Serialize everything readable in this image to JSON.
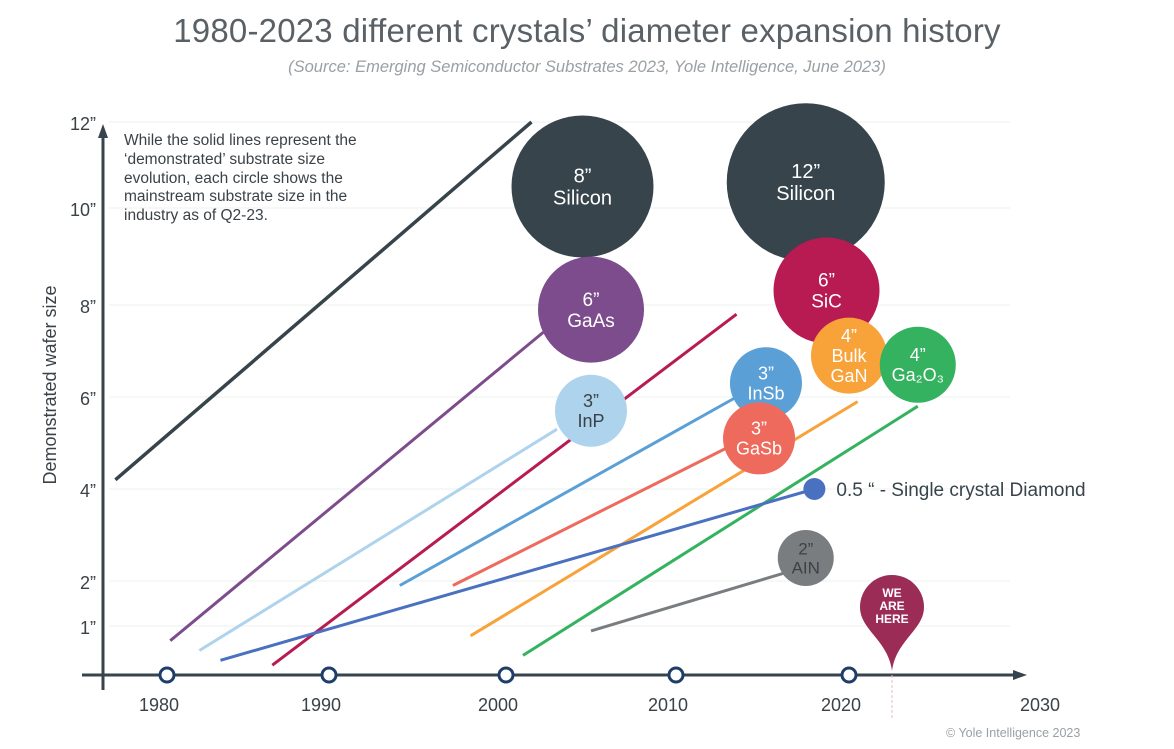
{
  "chart_data": {
    "type": "line",
    "title": "1980-2023 different crystals’ diameter expansion history",
    "subtitle": "(Source: Emerging Semiconductor Substrates 2023, Yole Intelligence, June 2023)",
    "xlabel": "",
    "ylabel": "Demonstrated wafer size",
    "xlim": [
      1977,
      2031
    ],
    "ylim": [
      0,
      12
    ],
    "x_ticks": [
      "1980",
      "1990",
      "2000",
      "2010",
      "2020",
      "2030"
    ],
    "y_ticks": [
      "1”",
      "2”",
      "4”",
      "6”",
      "8”",
      "10”",
      "12”"
    ],
    "grid": true,
    "annotation": "While the solid lines represent the ‘demonstrated’ substrate size evolution, each circle shows the mainstream substrate size in the industry as of Q2-23.",
    "marker": {
      "label_lines": [
        "WE",
        "ARE",
        "HERE"
      ],
      "year": 2022.5,
      "color": "#9b2c55"
    },
    "copyright": "© Yole Intelligence 2023",
    "series": [
      {
        "name": "Silicon",
        "color": "#37444b",
        "line": {
          "x": [
            1977,
            2001.5
          ],
          "y": [
            4.2,
            12
          ]
        },
        "bubbles": [
          {
            "size": "8”",
            "label": "Silicon",
            "x": 2004.5,
            "y": 10.5,
            "value_in": 8
          },
          {
            "size": "12”",
            "label": "Silicon",
            "x": 2017.5,
            "y": 10.6,
            "value_in": 12
          }
        ]
      },
      {
        "name": "GaAs",
        "color": "#7d4c8c",
        "line": {
          "x": [
            1980.2,
            2002.5
          ],
          "y": [
            0.7,
            7.5
          ]
        },
        "bubbles": [
          {
            "size": "6”",
            "label": "GaAs",
            "x": 2005,
            "y": 7.9,
            "value_in": 6
          }
        ]
      },
      {
        "name": "InP",
        "color": "#aed3ec",
        "line": {
          "x": [
            1982,
            2003
          ],
          "y": [
            0.5,
            5.3
          ]
        },
        "bubbles": [
          {
            "size": "3”",
            "label": "InP",
            "x": 2005,
            "y": 5.7,
            "value_in": 3
          }
        ]
      },
      {
        "name": "SiC",
        "color": "#b81a52",
        "line": {
          "x": [
            1986.5,
            2013.5
          ],
          "y": [
            0.2,
            7.8
          ]
        },
        "bubbles": [
          {
            "size": "6”",
            "label": "SiC",
            "x": 2018.7,
            "y": 8.3,
            "value_in": 6
          }
        ]
      },
      {
        "name": "InSb",
        "color": "#5a9fd6",
        "line": {
          "x": [
            1994,
            2013.5
          ],
          "y": [
            1.9,
            6.0
          ]
        },
        "bubbles": [
          {
            "size": "3”",
            "label": "InSb",
            "x": 2015.2,
            "y": 6.3,
            "value_in": 3
          }
        ]
      },
      {
        "name": "GaSb",
        "color": "#ee6a5c",
        "line": {
          "x": [
            1997,
            2013.5
          ],
          "y": [
            1.9,
            5.0
          ]
        },
        "bubbles": [
          {
            "size": "3”",
            "label": "GaSb",
            "x": 2014.8,
            "y": 5.1,
            "value_in": 3
          }
        ]
      },
      {
        "name": "Bulk GaN",
        "color": "#f8a23a",
        "line": {
          "x": [
            1998,
            2020.5
          ],
          "y": [
            0.8,
            5.9
          ]
        },
        "bubbles": [
          {
            "size": "4”",
            "label_lines": [
              "Bulk",
              "GaN"
            ],
            "label": "Bulk GaN",
            "x": 2020,
            "y": 6.9,
            "value_in": 4
          }
        ]
      },
      {
        "name": "Ga2O3",
        "color": "#34b260",
        "line": {
          "x": [
            2001,
            2024
          ],
          "y": [
            0.4,
            5.8
          ]
        },
        "bubbles": [
          {
            "size": "4”",
            "label": "Ga₂O₃",
            "x": 2024,
            "y": 6.7,
            "value_in": 4
          }
        ]
      },
      {
        "name": "Single crystal Diamond",
        "color": "#4a70c0",
        "line": {
          "x": [
            1983.3,
            2018
          ],
          "y": [
            0.3,
            4.0
          ]
        },
        "bubbles": [
          {
            "size": "0.5 “",
            "label": "0.5 “ - Single crystal Diamond",
            "x": 2018,
            "y": 4.0,
            "value_in": 0.5
          }
        ]
      },
      {
        "name": "AlN",
        "color": "#7a7d80",
        "line": {
          "x": [
            2005,
            2016.5
          ],
          "y": [
            0.9,
            2.2
          ]
        },
        "bubbles": [
          {
            "size": "2”",
            "label": "AIN",
            "x": 2017.5,
            "y": 2.5,
            "value_in": 2
          }
        ]
      }
    ]
  }
}
